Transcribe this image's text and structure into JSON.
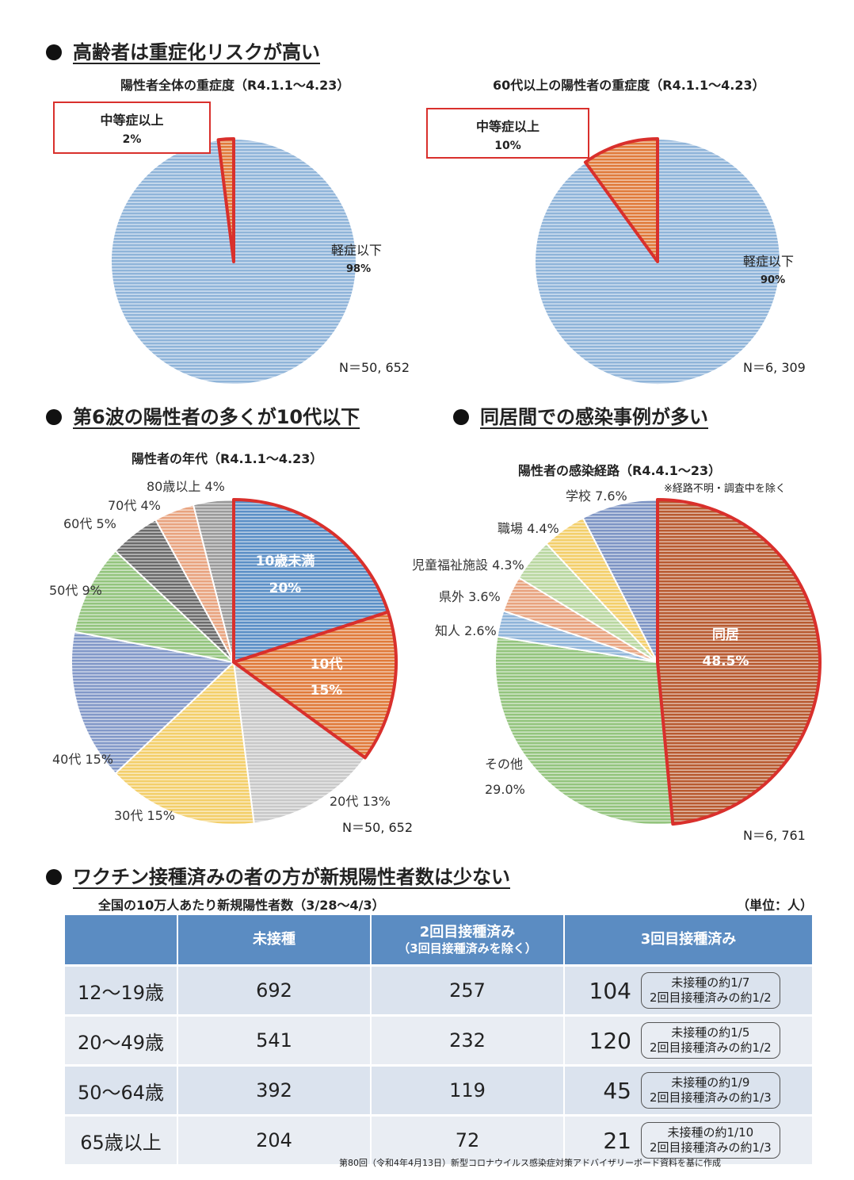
{
  "sections": {
    "severity": "高齢者は重症化リスクが高い",
    "age": "第6波の陽性者の多くが10代以下",
    "route": "同居間での感染事例が多い",
    "vaccine": "ワクチン接種済みの者の方が新規陽性者数は少ない"
  },
  "chart_data": [
    {
      "type": "pie",
      "id": "severity-all",
      "title": "陽性者全体の重症度（R4.1.1～4.23）",
      "labels": [
        "中等症以上",
        "軽症以下"
      ],
      "values": [
        2,
        98
      ],
      "value_labels": [
        "2%",
        "98%"
      ],
      "colors": [
        "#e07a3a",
        "#8fb4d9"
      ],
      "n": "N＝50, 652"
    },
    {
      "type": "pie",
      "id": "severity-60plus",
      "title": "60代以上の陽性者の重症度（R4.1.1～4.23）",
      "labels": [
        "中等症以上",
        "軽症以下"
      ],
      "values": [
        10,
        90
      ],
      "value_labels": [
        "10%",
        "90%"
      ],
      "colors": [
        "#e07a3a",
        "#8fb4d9"
      ],
      "n": "N＝6, 309"
    },
    {
      "type": "pie",
      "id": "age",
      "title": "陽性者の年代（R4.1.1～4.23）",
      "labels": [
        "10歳未満",
        "10代",
        "20代",
        "30代",
        "40代",
        "50代",
        "60代",
        "70代",
        "80歳以上"
      ],
      "values": [
        20,
        15,
        13,
        15,
        15,
        9,
        5,
        4,
        4
      ],
      "value_labels": [
        "20%",
        "15%",
        "13%",
        "15%",
        "15%",
        "9%",
        "5%",
        "4%",
        "4%"
      ],
      "colors": [
        "#5b8fc6",
        "#e07a3a",
        "#c8c8c8",
        "#f3cf6a",
        "#8298c8",
        "#93c47d",
        "#6b6b6b",
        "#e8a37f",
        "#9a9a9a"
      ],
      "n": "N＝50, 652"
    },
    {
      "type": "pie",
      "id": "route",
      "title": "陽性者の感染経路（R4.4.1～23）",
      "note": "※経路不明・調査中を除く",
      "labels": [
        "同居",
        "その他",
        "知人",
        "県外",
        "児童福祉施設",
        "職場",
        "学校"
      ],
      "values": [
        48.5,
        29.0,
        2.6,
        3.6,
        4.3,
        4.4,
        7.6
      ],
      "value_labels": [
        "48.5%",
        "29.0%",
        "2.6%",
        "3.6%",
        "4.3%",
        "4.4%",
        "7.6%"
      ],
      "colors": [
        "#b85a30",
        "#93c47d",
        "#8fb4d9",
        "#e8a37f",
        "#b9d7a0",
        "#f3cf6a",
        "#7d94c4"
      ],
      "n": "N＝6, 761"
    }
  ],
  "vaccine_table": {
    "title": "全国の10万人あたり新規陽性者数（3/28～4/3）",
    "unit": "（単位：人）",
    "headers": {
      "unvaccinated": "未接種",
      "dose2": "2回目接種済み",
      "dose2_sub": "（3回目接種済みを除く）",
      "dose3": "3回目接種済み"
    },
    "rows": [
      {
        "age": "12～19歳",
        "unvaccinated": "692",
        "dose2": "257",
        "dose3": "104",
        "note1": "未接種の約1/7",
        "note2": "2回目接種済みの約1/2"
      },
      {
        "age": "20～49歳",
        "unvaccinated": "541",
        "dose2": "232",
        "dose3": "120",
        "note1": "未接種の約1/5",
        "note2": "2回目接種済みの約1/2"
      },
      {
        "age": "50～64歳",
        "unvaccinated": "392",
        "dose2": "119",
        "dose3": "45",
        "note1": "未接種の約1/9",
        "note2": "2回目接種済みの約1/3"
      },
      {
        "age": "65歳以上",
        "unvaccinated": "204",
        "dose2": "72",
        "dose3": "21",
        "note1": "未接種の約1/10",
        "note2": "2回目接種済みの約1/3"
      }
    ],
    "source": "第80回（令和4年4月13日）新型コロナウイルス感染症対策アドバイザリーボード資料を基に作成"
  }
}
